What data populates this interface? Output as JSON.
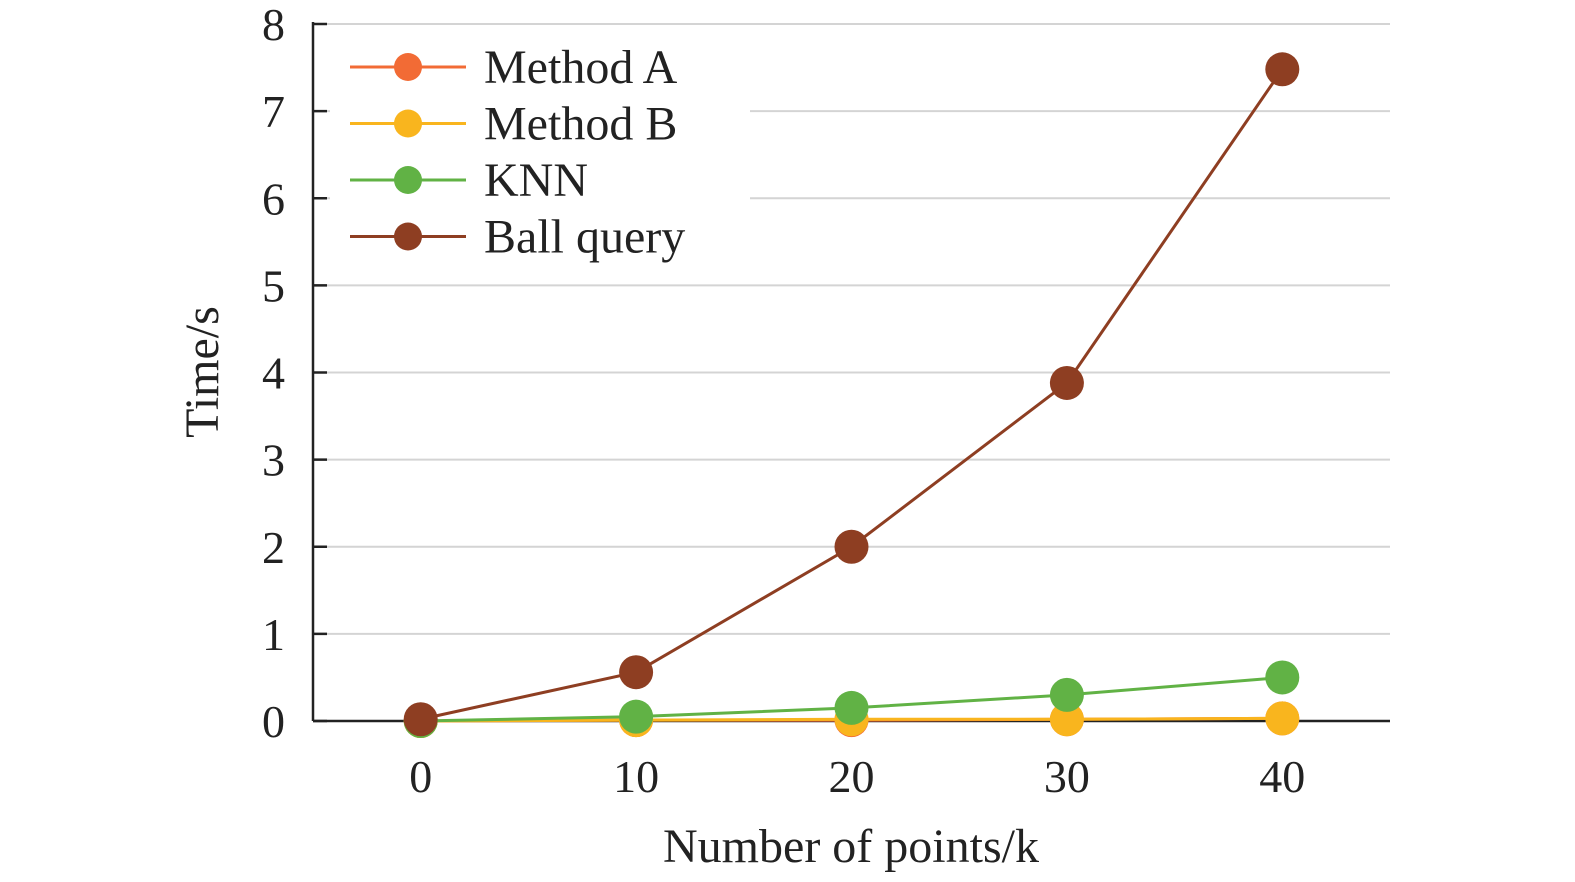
{
  "chart_data": {
    "type": "line",
    "title": "",
    "xlabel": "Number of points/k",
    "ylabel": "Time/s",
    "x": [
      0,
      10,
      20,
      30,
      40
    ],
    "x_ticks": [
      "0",
      "10",
      "20",
      "30",
      "40"
    ],
    "y_ticks": [
      "0",
      "1",
      "2",
      "3",
      "4",
      "5",
      "6",
      "7",
      "8"
    ],
    "xlim": [
      -5,
      45
    ],
    "ylim": [
      0,
      8
    ],
    "grid": "horizontal",
    "legend_position": "top-left",
    "series": [
      {
        "name": "Method A",
        "color": "#F26B35",
        "values": [
          0,
          0.01,
          0.01,
          0.02,
          0.03
        ]
      },
      {
        "name": "Method B",
        "color": "#F9B51E",
        "values": [
          0,
          0.01,
          0.02,
          0.02,
          0.03
        ]
      },
      {
        "name": "KNN",
        "color": "#61B245",
        "values": [
          0,
          0.05,
          0.15,
          0.3,
          0.5
        ]
      },
      {
        "name": "Ball query",
        "color": "#8E3E22",
        "values": [
          0.02,
          0.56,
          2.0,
          3.88,
          7.48
        ]
      }
    ]
  }
}
